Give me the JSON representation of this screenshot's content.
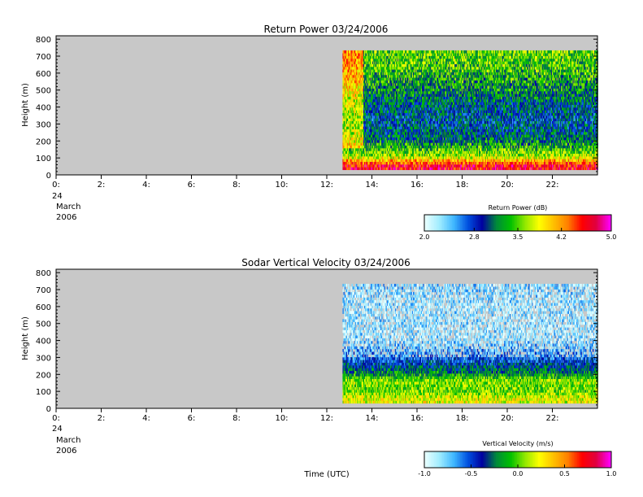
{
  "chart_data": [
    {
      "type": "heatmap",
      "title": "Return Power 03/24/2006",
      "ylabel": "Height (m)",
      "xlabel": "",
      "xlim": [
        0,
        24
      ],
      "ylim": [
        0,
        820
      ],
      "x_ticks": [
        0,
        2,
        4,
        6,
        8,
        10,
        12,
        14,
        16,
        18,
        20,
        22
      ],
      "x_tick_labels": [
        "0:",
        "2:",
        "4:",
        "6:",
        "8:",
        "10:",
        "12:",
        "14:",
        "16:",
        "18:",
        "20:",
        "22:"
      ],
      "y_ticks": [
        0,
        100,
        200,
        300,
        400,
        500,
        600,
        700,
        800
      ],
      "y_tick_labels": [
        "0",
        "100",
        "200",
        "300",
        "400",
        "500",
        "600",
        "700",
        "800"
      ],
      "date_label": [
        "24",
        "March",
        "2006"
      ],
      "data_extent": {
        "x": [
          12.7,
          24
        ],
        "y": [
          30,
          720
        ]
      },
      "background": "#c8c8c8",
      "height_profile": [
        {
          "height": 50,
          "value": 4.6
        },
        {
          "height": 100,
          "value": 3.7
        },
        {
          "height": 150,
          "value": 3.4
        },
        {
          "height": 200,
          "value": 3.1
        },
        {
          "height": 300,
          "value": 2.9
        },
        {
          "height": 400,
          "value": 3.0
        },
        {
          "height": 500,
          "value": 3.2
        },
        {
          "height": 600,
          "value": 3.4
        },
        {
          "height": 700,
          "value": 3.5
        }
      ],
      "colorbar": {
        "label": "Return Power (dB)",
        "min": 2.0,
        "max": 5.0,
        "ticks": [
          2.0,
          2.8,
          3.5,
          4.2,
          5.0
        ],
        "tick_labels": [
          "2.0",
          "2.8",
          "3.5",
          "4.2",
          "5.0"
        ]
      }
    },
    {
      "type": "heatmap",
      "title": "Sodar Vertical Velocity 03/24/2006",
      "ylabel": "Height (m)",
      "xlabel": "Time (UTC)",
      "xlim": [
        0,
        24
      ],
      "ylim": [
        0,
        820
      ],
      "x_ticks": [
        0,
        2,
        4,
        6,
        8,
        10,
        12,
        14,
        16,
        18,
        20,
        22
      ],
      "x_tick_labels": [
        "0:",
        "2:",
        "4:",
        "6:",
        "8:",
        "10:",
        "12:",
        "14:",
        "16:",
        "18:",
        "20:",
        "22:"
      ],
      "y_ticks": [
        0,
        100,
        200,
        300,
        400,
        500,
        600,
        700,
        800
      ],
      "y_tick_labels": [
        "0",
        "100",
        "200",
        "300",
        "400",
        "500",
        "600",
        "700",
        "800"
      ],
      "date_label": [
        "24",
        "March",
        "2006"
      ],
      "data_extent": {
        "x": [
          12.7,
          24
        ],
        "y": [
          30,
          720
        ]
      },
      "background": "#c8c8c8",
      "height_profile": [
        {
          "height": 50,
          "value": 0.2
        },
        {
          "height": 100,
          "value": 0.0
        },
        {
          "height": 150,
          "value": 0.1
        },
        {
          "height": 200,
          "value": -0.2
        },
        {
          "height": 300,
          "value": -0.6
        },
        {
          "height": 400,
          "value": -0.85
        },
        {
          "height": 500,
          "value": -0.85
        },
        {
          "height": 600,
          "value": -0.85
        },
        {
          "height": 700,
          "value": -0.8
        }
      ],
      "colorbar": {
        "label": "Vertical Velocity (m/s)",
        "min": -1.0,
        "max": 1.0,
        "ticks": [
          -1.0,
          -0.5,
          0.0,
          0.5,
          1.0
        ],
        "tick_labels": [
          "-1.0",
          "-0.5",
          "0.0",
          "0.5",
          "1.0"
        ]
      }
    }
  ],
  "colormap": [
    "#e8ffff",
    "#a0ecff",
    "#40b8ff",
    "#0050e0",
    "#0000a0",
    "#008a3a",
    "#00c000",
    "#90e800",
    "#ffff00",
    "#ffc000",
    "#ff8000",
    "#ff0000",
    "#e00040",
    "#ff00ff"
  ]
}
